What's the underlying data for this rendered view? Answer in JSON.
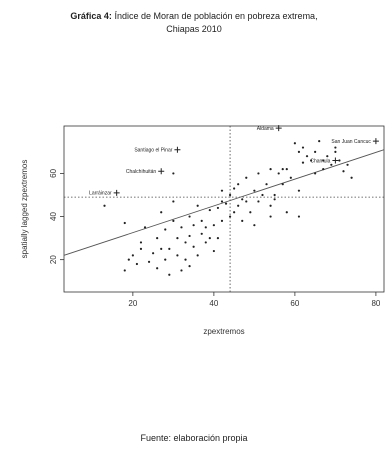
{
  "header": {
    "title_bold": "Gráfica 4:",
    "title_rest": " Índice de Moran de población en pobreza extrema,",
    "subtitle": "Chiapas 2010"
  },
  "footer": {
    "source": "Fuente: elaboración propia"
  },
  "chart_data": {
    "type": "scatter",
    "title": "",
    "xlabel": "zpextremos",
    "ylabel": "spatially lagged zpextremos",
    "xlim": [
      3,
      82
    ],
    "ylim": [
      5,
      82
    ],
    "xticks": [
      20,
      40,
      60,
      80
    ],
    "yticks": [
      20,
      40,
      60
    ],
    "mean_x": 44,
    "mean_y": 49,
    "regression": {
      "x": [
        3,
        82
      ],
      "y": [
        22,
        71
      ]
    },
    "points": [
      [
        13,
        45
      ],
      [
        18,
        37
      ],
      [
        18,
        15
      ],
      [
        19,
        20
      ],
      [
        20,
        22
      ],
      [
        21,
        18
      ],
      [
        22,
        28
      ],
      [
        22,
        25
      ],
      [
        23,
        35
      ],
      [
        24,
        19
      ],
      [
        25,
        23
      ],
      [
        26,
        30
      ],
      [
        26,
        16
      ],
      [
        27,
        42
      ],
      [
        27,
        25
      ],
      [
        28,
        34
      ],
      [
        28,
        20
      ],
      [
        29,
        13
      ],
      [
        29,
        25
      ],
      [
        30,
        47
      ],
      [
        30,
        38
      ],
      [
        31,
        30
      ],
      [
        31,
        22
      ],
      [
        32,
        15
      ],
      [
        32,
        35
      ],
      [
        33,
        28
      ],
      [
        33,
        20
      ],
      [
        34,
        40
      ],
      [
        34,
        31
      ],
      [
        34,
        17
      ],
      [
        35,
        36
      ],
      [
        35,
        26
      ],
      [
        36,
        45
      ],
      [
        36,
        22
      ],
      [
        37,
        32
      ],
      [
        37,
        38
      ],
      [
        38,
        28
      ],
      [
        38,
        35
      ],
      [
        39,
        43
      ],
      [
        39,
        30
      ],
      [
        40,
        24
      ],
      [
        40,
        36
      ],
      [
        41,
        44
      ],
      [
        41,
        30
      ],
      [
        42,
        38
      ],
      [
        42,
        47
      ],
      [
        43,
        46
      ],
      [
        44,
        40
      ],
      [
        44,
        50
      ],
      [
        45,
        53
      ],
      [
        45,
        42
      ],
      [
        46,
        45
      ],
      [
        46,
        55
      ],
      [
        47,
        38
      ],
      [
        47,
        48
      ],
      [
        48,
        47
      ],
      [
        48,
        58
      ],
      [
        49,
        42
      ],
      [
        50,
        52
      ],
      [
        51,
        47
      ],
      [
        51,
        60
      ],
      [
        52,
        50
      ],
      [
        53,
        55
      ],
      [
        54,
        45
      ],
      [
        54,
        62
      ],
      [
        55,
        50
      ],
      [
        55,
        48
      ],
      [
        56,
        60
      ],
      [
        57,
        55
      ],
      [
        58,
        42
      ],
      [
        58,
        62
      ],
      [
        59,
        58
      ],
      [
        60,
        74
      ],
      [
        61,
        70
      ],
      [
        61,
        52
      ],
      [
        62,
        65
      ],
      [
        62,
        72
      ],
      [
        63,
        68
      ],
      [
        64,
        66
      ],
      [
        65,
        60
      ],
      [
        65,
        70
      ],
      [
        66,
        75
      ],
      [
        67,
        66
      ],
      [
        67,
        62
      ],
      [
        68,
        68
      ],
      [
        69,
        64
      ],
      [
        70,
        72
      ],
      [
        70,
        70
      ],
      [
        71,
        66
      ],
      [
        72,
        61
      ],
      [
        73,
        64
      ],
      [
        74,
        58
      ],
      [
        61,
        40
      ],
      [
        54,
        40
      ],
      [
        42,
        52
      ],
      [
        50,
        36
      ],
      [
        30,
        60
      ],
      [
        57,
        62
      ]
    ],
    "labeled_points": [
      {
        "label": "Santiago el Pinar",
        "x": 31,
        "y": 71
      },
      {
        "label": "Chalchihuitán",
        "x": 27,
        "y": 61
      },
      {
        "label": "Larráinzar",
        "x": 16,
        "y": 51
      },
      {
        "label": "Aldama",
        "x": 56,
        "y": 81
      },
      {
        "label": "San Juan Cancuc",
        "x": 80,
        "y": 75
      },
      {
        "label": "Chamula",
        "x": 70,
        "y": 66
      }
    ]
  }
}
